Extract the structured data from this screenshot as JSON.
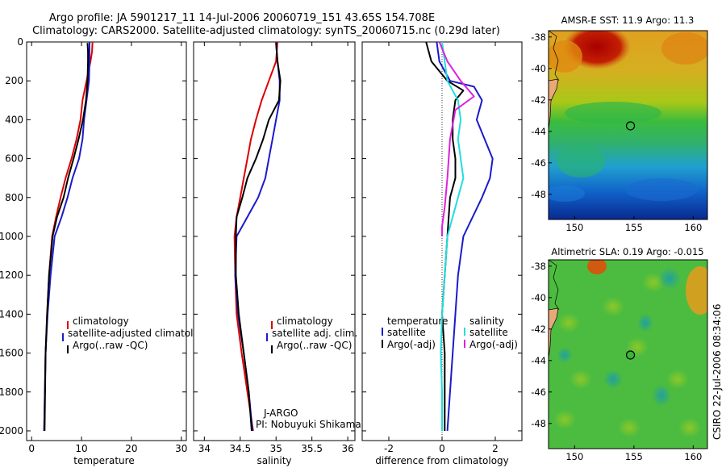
{
  "title": {
    "line1": "Argo profile: JA 5901217_11 14-Jul-2006 20060719_151 43.65S 154.708E",
    "line2": "Climatology: CARS2000. Satellite-adjusted climatology: synTS_20060715.nc (0.29d later)"
  },
  "side_label": "CSIRO 22-Jul-2006 08:34:06",
  "colors": {
    "red": "#dd0000",
    "blue": "#1a1acc",
    "black": "#000000",
    "cyan": "#22dddd",
    "magenta": "#dd22dd"
  },
  "chart_data": [
    {
      "type": "line",
      "panel": "temperature",
      "xlabel": "temperature",
      "ylabel": "",
      "xlim": [
        -1,
        31
      ],
      "ylim": [
        2050,
        0
      ],
      "xticks": [
        0,
        10,
        20,
        30
      ],
      "xtick_labels": [
        "0",
        "10",
        "20",
        "30"
      ],
      "yticks": [
        0,
        200,
        400,
        600,
        800,
        1000,
        1200,
        1400,
        1600,
        1800,
        2000
      ],
      "ytick_labels": [
        "0",
        "200",
        "400",
        "600",
        "800",
        "1000",
        "1200",
        "1400",
        "1600",
        "1800",
        "2000"
      ],
      "legend": [
        "climatology",
        "satellite-adjusted climatology",
        "Argo(..raw -QC)"
      ],
      "series": [
        {
          "name": "climatology",
          "color": "red",
          "x": [
            12.2,
            12.1,
            11.8,
            11.0,
            10.2,
            9.8,
            9.0,
            8.0,
            6.8,
            5.8,
            4.9,
            4.1,
            3.5,
            3.1,
            2.8,
            2.5
          ],
          "y": [
            0,
            50,
            100,
            200,
            300,
            400,
            500,
            600,
            700,
            800,
            900,
            1000,
            1200,
            1400,
            1600,
            2000
          ]
        },
        {
          "name": "satellite-adjusted climatology",
          "color": "blue",
          "x": [
            11.6,
            11.6,
            11.6,
            11.5,
            11.0,
            10.5,
            10.2,
            9.5,
            8.2,
            7.2,
            6.0,
            4.6,
            3.8,
            3.2,
            2.8,
            2.5
          ],
          "y": [
            0,
            50,
            100,
            200,
            300,
            400,
            500,
            600,
            700,
            800,
            900,
            1000,
            1200,
            1400,
            1600,
            2000
          ]
        },
        {
          "name": "Argo(..raw -QC)",
          "color": "black",
          "x": [
            11.2,
            11.3,
            11.3,
            11.2,
            10.9,
            10.3,
            9.4,
            8.4,
            7.3,
            6.4,
            5.1,
            4.2,
            3.5,
            3.1,
            2.8,
            2.6
          ],
          "y": [
            5,
            50,
            100,
            200,
            300,
            400,
            500,
            600,
            700,
            800,
            900,
            1000,
            1200,
            1400,
            1600,
            2000
          ]
        }
      ]
    },
    {
      "type": "line",
      "panel": "salinity",
      "xlabel": "salinity",
      "ylabel": "",
      "xlim": [
        33.85,
        36.1
      ],
      "ylim": [
        2050,
        0
      ],
      "xticks": [
        34,
        34.5,
        35,
        35.5,
        36
      ],
      "xtick_labels": [
        "34",
        "34.5",
        "35",
        "35.5",
        "36"
      ],
      "legend": [
        "climatology",
        "satellite adj. clim.",
        "Argo(..raw -QC)"
      ],
      "annotations": [
        "J-ARGO",
        "PI: Nobuyuki Shikama"
      ],
      "series": [
        {
          "name": "climatology",
          "color": "red",
          "x": [
            35.02,
            35.0,
            34.9,
            34.8,
            34.72,
            34.65,
            34.6,
            34.55,
            34.5,
            34.45,
            34.42,
            34.43,
            34.45,
            34.52,
            34.6,
            34.68
          ],
          "y": [
            0,
            100,
            200,
            300,
            400,
            500,
            600,
            700,
            800,
            900,
            1000,
            1200,
            1400,
            1600,
            1800,
            2000
          ]
        },
        {
          "name": "satellite adj. clim.",
          "color": "blue",
          "x": [
            35.0,
            35.02,
            35.05,
            35.05,
            35.0,
            34.95,
            34.9,
            34.85,
            34.75,
            34.6,
            34.45,
            34.43,
            34.47,
            34.55,
            34.62,
            34.67
          ],
          "y": [
            0,
            100,
            200,
            300,
            400,
            500,
            600,
            700,
            800,
            900,
            1000,
            1200,
            1400,
            1600,
            1800,
            2000
          ]
        },
        {
          "name": "Argo(..raw -QC)",
          "color": "black",
          "x": [
            35.0,
            35.02,
            35.06,
            35.04,
            34.9,
            34.82,
            34.72,
            34.6,
            34.53,
            34.45,
            34.44,
            34.44,
            34.48,
            34.55,
            34.62,
            34.66
          ],
          "y": [
            5,
            100,
            200,
            300,
            400,
            500,
            600,
            700,
            800,
            900,
            1000,
            1200,
            1400,
            1600,
            1800,
            2000
          ]
        }
      ]
    },
    {
      "type": "line",
      "panel": "difference",
      "xlabel": "difference from climatology",
      "ylabel": "",
      "xlim": [
        -3,
        3
      ],
      "ylim": [
        2050,
        0
      ],
      "xticks": [
        -2,
        0,
        2
      ],
      "xtick_labels": [
        "-2",
        "0",
        "2"
      ],
      "legend": [
        "temperature",
        "satellite",
        "Argo(-adj)",
        "salinity",
        "satellite",
        "Argo(-adj)"
      ],
      "series": [
        {
          "name": "temperature satellite",
          "color": "blue",
          "x": [
            -0.2,
            -0.1,
            0.3,
            1.2,
            1.5,
            1.3,
            1.6,
            1.9,
            1.8,
            1.5,
            0.8,
            0.6,
            0.5,
            0.4,
            0.3,
            0.2
          ],
          "y": [
            0,
            100,
            200,
            230,
            300,
            400,
            500,
            600,
            700,
            800,
            1000,
            1200,
            1400,
            1600,
            1800,
            2000
          ]
        },
        {
          "name": "temperature Argo(-adj)",
          "color": "black",
          "x": [
            -0.6,
            -0.4,
            0.2,
            0.8,
            0.5,
            0.4,
            0.4,
            0.5,
            0.5,
            0.3,
            0.2,
            0.1,
            0.0,
            0.1,
            0.1,
            0.1
          ],
          "y": [
            0,
            100,
            200,
            250,
            300,
            400,
            500,
            600,
            700,
            800,
            1000,
            1200,
            1400,
            1600,
            1800,
            2000
          ]
        },
        {
          "name": "salinity satellite",
          "color": "cyan",
          "x": [
            0.0,
            0.1,
            0.2,
            0.6,
            0.7,
            0.6,
            0.7,
            0.8,
            0.6,
            0.4,
            0.2,
            0.1,
            0.0,
            -0.05,
            0.0,
            0.0
          ],
          "y": [
            0,
            100,
            200,
            300,
            400,
            500,
            600,
            700,
            800,
            900,
            1000,
            1200,
            1400,
            1600,
            1800,
            2000
          ]
        },
        {
          "name": "salinity Argo(-adj)",
          "color": "magenta",
          "x": [
            -0.1,
            0.2,
            0.7,
            1.2,
            0.5,
            0.3,
            0.2,
            0.1,
            0.0,
            0.0
          ],
          "y": [
            0,
            100,
            200,
            280,
            350,
            500,
            700,
            850,
            950,
            1000
          ]
        }
      ]
    },
    {
      "type": "heatmap",
      "panel": "sst_map",
      "title": "AMSR-E SST: 11.9 Argo: 11.3",
      "xlim": [
        147.8,
        161.2
      ],
      "ylim": [
        -49.6,
        -37.6
      ],
      "xticks": [
        150,
        155,
        160
      ],
      "xtick_labels": [
        "150",
        "155",
        "160"
      ],
      "yticks": [
        -38,
        -40,
        -42,
        -44,
        -46,
        -48
      ],
      "ytick_labels": [
        "-38",
        "-40",
        "-42",
        "-44",
        "-46",
        "-48"
      ],
      "marker": {
        "lon": 154.708,
        "lat": -43.65
      }
    },
    {
      "type": "heatmap",
      "panel": "sla_map",
      "title": "Altimetric SLA: 0.19 Argo: -0.015",
      "xlim": [
        147.8,
        161.2
      ],
      "ylim": [
        -49.6,
        -37.6
      ],
      "xticks": [
        150,
        155,
        160
      ],
      "xtick_labels": [
        "150",
        "155",
        "160"
      ],
      "yticks": [
        -38,
        -40,
        -42,
        -44,
        -46,
        -48
      ],
      "ytick_labels": [
        "-38",
        "-40",
        "-42",
        "-44",
        "-46",
        "-48"
      ],
      "marker": {
        "lon": 154.708,
        "lat": -43.65
      }
    }
  ]
}
